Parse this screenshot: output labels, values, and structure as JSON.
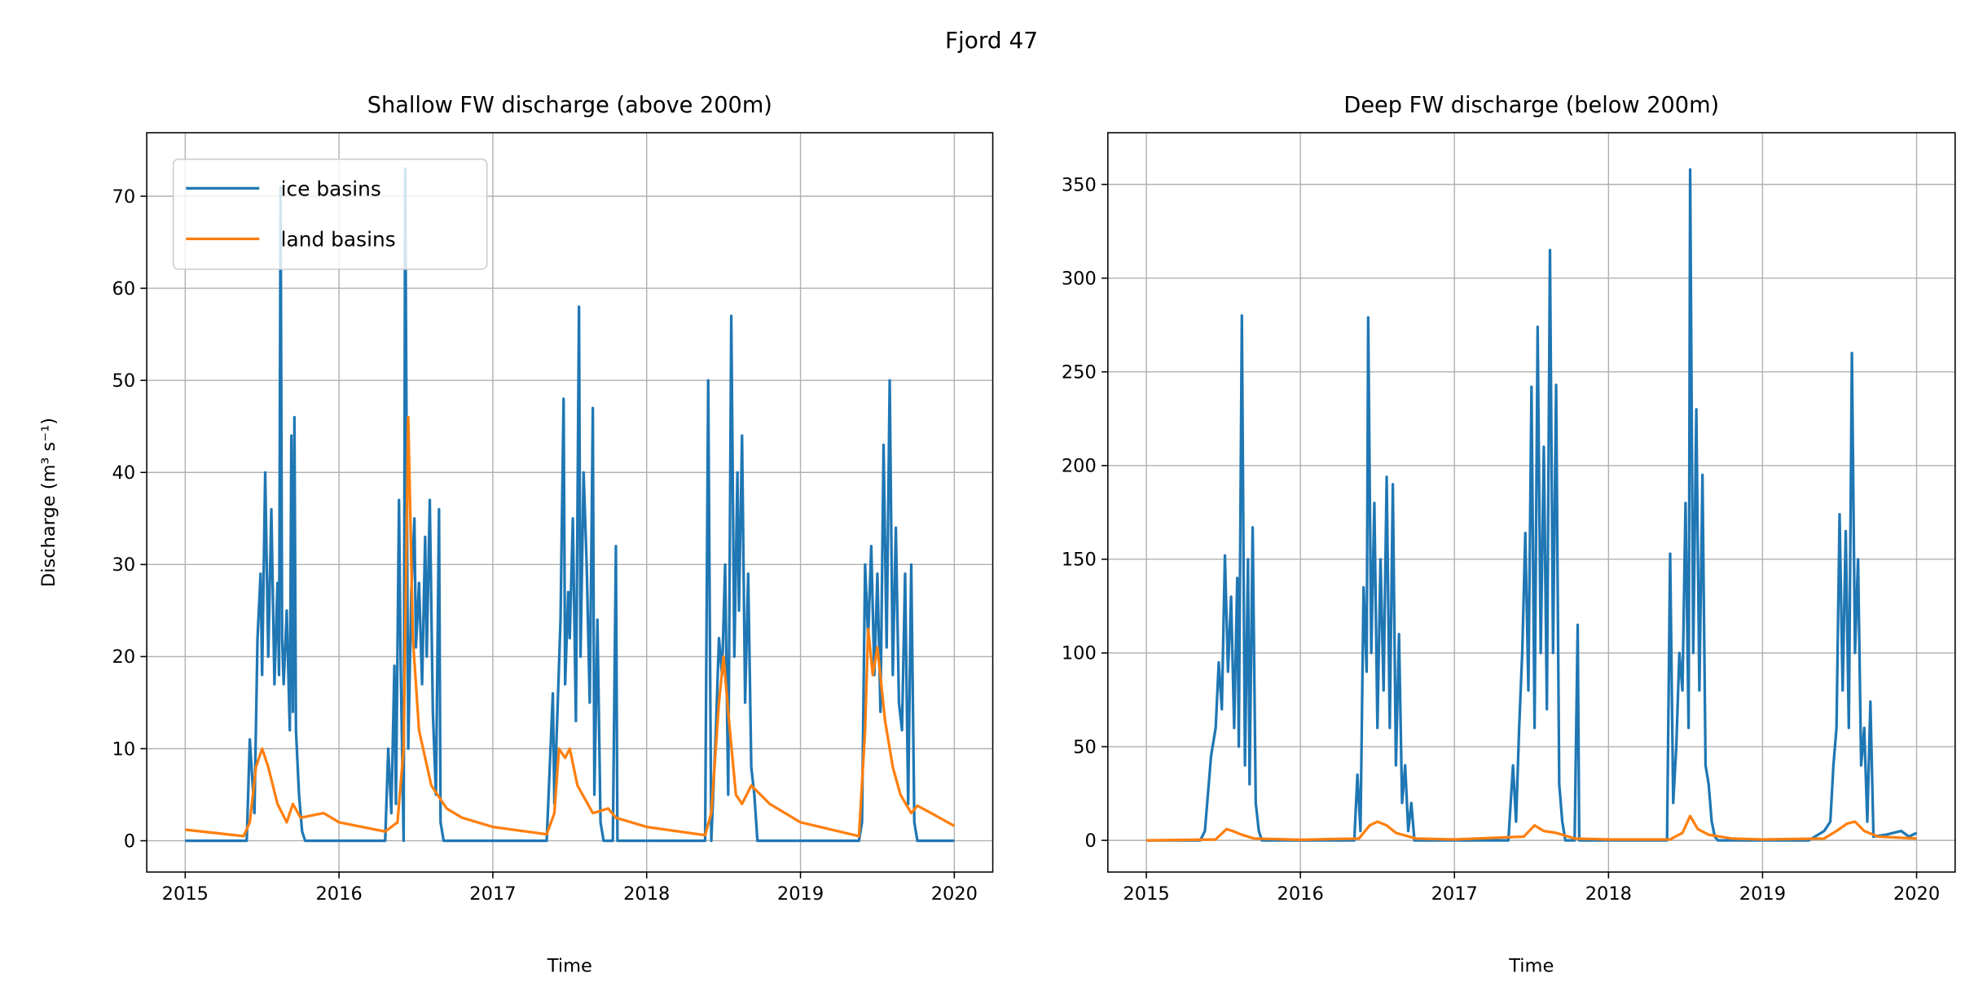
{
  "title": "Fjord 47",
  "chart_data": [
    {
      "type": "line",
      "title": "Shallow FW discharge (above 200m)",
      "xlabel": "Time",
      "ylabel": "Discharge (m³ s⁻¹)",
      "xlim": [
        2014.75,
        2020.25
      ],
      "ylim": [
        -3.4,
        76.9
      ],
      "xticks": [
        2015,
        2016,
        2017,
        2018,
        2019,
        2020
      ],
      "yticks": [
        0,
        10,
        20,
        30,
        40,
        50,
        60,
        70
      ],
      "grid": true,
      "legend": "upper left",
      "series": [
        {
          "name": "ice basins",
          "color": "#1f77b4",
          "x": [
            2015.0,
            2015.4,
            2015.42,
            2015.45,
            2015.47,
            2015.49,
            2015.5,
            2015.52,
            2015.54,
            2015.56,
            2015.58,
            2015.6,
            2015.61,
            2015.62,
            2015.63,
            2015.64,
            2015.66,
            2015.68,
            2015.69,
            2015.7,
            2015.71,
            2015.72,
            2015.74,
            2015.76,
            2015.78,
            2016.3,
            2016.32,
            2016.34,
            2016.36,
            2016.37,
            2016.39,
            2016.4,
            2016.42,
            2016.43,
            2016.45,
            2016.47,
            2016.49,
            2016.5,
            2016.52,
            2016.54,
            2016.56,
            2016.57,
            2016.59,
            2016.61,
            2016.63,
            2016.65,
            2016.66,
            2016.68,
            2017.35,
            2017.37,
            2017.39,
            2017.4,
            2017.42,
            2017.44,
            2017.46,
            2017.47,
            2017.49,
            2017.5,
            2017.52,
            2017.54,
            2017.56,
            2017.57,
            2017.59,
            2017.61,
            2017.63,
            2017.65,
            2017.66,
            2017.68,
            2017.7,
            2017.72,
            2017.78,
            2017.8,
            2017.81,
            2018.38,
            2018.4,
            2018.42,
            2018.45,
            2018.47,
            2018.49,
            2018.51,
            2018.53,
            2018.55,
            2018.57,
            2018.59,
            2018.6,
            2018.62,
            2018.64,
            2018.66,
            2018.68,
            2018.7,
            2018.72,
            2019.38,
            2019.4,
            2019.42,
            2019.44,
            2019.46,
            2019.48,
            2019.5,
            2019.52,
            2019.54,
            2019.56,
            2019.58,
            2019.6,
            2019.62,
            2019.64,
            2019.66,
            2019.68,
            2019.7,
            2019.72,
            2019.74,
            2019.76,
            2020.0
          ],
          "values": [
            0,
            0,
            11,
            3,
            22,
            29,
            18,
            40,
            20,
            36,
            17,
            28,
            18,
            71,
            22,
            17,
            25,
            12,
            44,
            14,
            46,
            12,
            5,
            1,
            0,
            0,
            10,
            3,
            19,
            4,
            37,
            20,
            0,
            73,
            10,
            27,
            35,
            21,
            28,
            17,
            33,
            20,
            37,
            14,
            5,
            36,
            2,
            0,
            0,
            8,
            16,
            4,
            14,
            24,
            48,
            17,
            27,
            22,
            35,
            13,
            58,
            20,
            40,
            30,
            15,
            47,
            5,
            24,
            2,
            0,
            0,
            32,
            0,
            0,
            50,
            0,
            12,
            22,
            18,
            30,
            5,
            57,
            20,
            40,
            25,
            44,
            15,
            29,
            8,
            5,
            0,
            0,
            2,
            30,
            22,
            32,
            18,
            29,
            14,
            43,
            21,
            50,
            18,
            34,
            15,
            12,
            29,
            4,
            30,
            2,
            0,
            0
          ]
        },
        {
          "name": "land basins",
          "color": "#ff7f0e",
          "x": [
            2015.0,
            2015.38,
            2015.42,
            2015.46,
            2015.5,
            2015.54,
            2015.6,
            2015.66,
            2015.7,
            2015.75,
            2015.9,
            2016.0,
            2016.3,
            2016.38,
            2016.42,
            2016.45,
            2016.48,
            2016.52,
            2016.6,
            2016.7,
            2016.8,
            2017.0,
            2017.35,
            2017.4,
            2017.43,
            2017.47,
            2017.5,
            2017.55,
            2017.65,
            2017.75,
            2017.8,
            2018.0,
            2018.38,
            2018.42,
            2018.47,
            2018.5,
            2018.53,
            2018.58,
            2018.62,
            2018.68,
            2018.8,
            2019.0,
            2019.38,
            2019.42,
            2019.44,
            2019.47,
            2019.5,
            2019.55,
            2019.6,
            2019.65,
            2019.72,
            2019.76,
            2019.85,
            2020.0
          ],
          "values": [
            1.2,
            0.5,
            2,
            8,
            10,
            8,
            4,
            2,
            4,
            2.5,
            3,
            2,
            1,
            2,
            10,
            46,
            22,
            12,
            6,
            3.5,
            2.5,
            1.5,
            0.7,
            3,
            10,
            9,
            10,
            6,
            3,
            3.5,
            2.5,
            1.5,
            0.6,
            3,
            15,
            20,
            14,
            5,
            4,
            6,
            4,
            2,
            0.5,
            12,
            23,
            18,
            21,
            13,
            8,
            5,
            3,
            3.8,
            3,
            1.6
          ]
        }
      ]
    },
    {
      "type": "line",
      "title": "Deep FW discharge (below 200m)",
      "xlabel": "Time",
      "xlim": [
        2014.75,
        2020.25
      ],
      "ylim": [
        -16.9,
        377.6
      ],
      "xticks": [
        2015,
        2016,
        2017,
        2018,
        2019,
        2020
      ],
      "yticks": [
        0,
        50,
        100,
        150,
        200,
        250,
        300,
        350
      ],
      "grid": true,
      "series": [
        {
          "name": "ice basins",
          "color": "#1f77b4",
          "x": [
            2015.0,
            2015.35,
            2015.38,
            2015.42,
            2015.45,
            2015.47,
            2015.49,
            2015.51,
            2015.53,
            2015.55,
            2015.57,
            2015.59,
            2015.6,
            2015.62,
            2015.64,
            2015.66,
            2015.67,
            2015.69,
            2015.71,
            2015.73,
            2015.75,
            2016.35,
            2016.37,
            2016.39,
            2016.41,
            2016.43,
            2016.44,
            2016.46,
            2016.48,
            2016.5,
            2016.52,
            2016.54,
            2016.56,
            2016.58,
            2016.6,
            2016.62,
            2016.64,
            2016.66,
            2016.68,
            2016.7,
            2016.72,
            2016.74,
            2017.35,
            2017.38,
            2017.4,
            2017.42,
            2017.44,
            2017.46,
            2017.48,
            2017.5,
            2017.52,
            2017.54,
            2017.56,
            2017.58,
            2017.6,
            2017.62,
            2017.64,
            2017.66,
            2017.68,
            2017.7,
            2017.72,
            2017.78,
            2017.8,
            2017.81,
            2018.38,
            2018.4,
            2018.42,
            2018.44,
            2018.46,
            2018.48,
            2018.5,
            2018.52,
            2018.53,
            2018.55,
            2018.57,
            2018.59,
            2018.61,
            2018.63,
            2018.65,
            2018.67,
            2018.69,
            2018.71,
            2019.3,
            2019.4,
            2019.44,
            2019.46,
            2019.48,
            2019.5,
            2019.52,
            2019.54,
            2019.56,
            2019.58,
            2019.6,
            2019.62,
            2019.64,
            2019.66,
            2019.68,
            2019.7,
            2019.72,
            2019.8,
            2019.9,
            2019.95,
            2020.0
          ],
          "values": [
            0,
            0,
            5,
            45,
            60,
            95,
            70,
            152,
            90,
            130,
            60,
            140,
            50,
            280,
            40,
            150,
            30,
            167,
            20,
            5,
            0,
            0,
            35,
            5,
            135,
            90,
            279,
            100,
            180,
            60,
            150,
            80,
            194,
            60,
            190,
            40,
            110,
            20,
            40,
            5,
            20,
            0,
            0,
            40,
            10,
            60,
            100,
            164,
            80,
            242,
            60,
            274,
            100,
            210,
            70,
            315,
            100,
            243,
            30,
            10,
            0,
            0,
            115,
            0,
            0,
            153,
            20,
            50,
            100,
            80,
            180,
            60,
            358,
            100,
            230,
            80,
            195,
            40,
            30,
            10,
            2,
            0,
            0,
            5,
            10,
            40,
            60,
            174,
            80,
            165,
            60,
            260,
            100,
            150,
            40,
            60,
            10,
            74,
            2,
            3,
            5,
            2,
            4
          ]
        },
        {
          "name": "land basins",
          "color": "#ff7f0e",
          "x": [
            2015.0,
            2015.45,
            2015.52,
            2015.56,
            2015.62,
            2015.7,
            2016.0,
            2016.38,
            2016.45,
            2016.5,
            2016.56,
            2016.62,
            2016.75,
            2017.0,
            2017.45,
            2017.52,
            2017.58,
            2017.66,
            2017.78,
            2018.0,
            2018.4,
            2018.48,
            2018.53,
            2018.58,
            2018.65,
            2018.8,
            2019.0,
            2019.4,
            2019.48,
            2019.55,
            2019.6,
            2019.66,
            2019.75,
            2020.0
          ],
          "values": [
            0,
            0.5,
            6,
            5,
            3,
            1,
            0.3,
            1,
            8,
            10,
            8,
            4,
            1,
            0.5,
            2,
            8,
            5,
            4,
            1,
            0.5,
            0.5,
            4,
            13,
            6,
            3,
            1,
            0.5,
            1,
            5,
            9,
            10,
            5,
            2,
            1
          ]
        }
      ]
    }
  ]
}
